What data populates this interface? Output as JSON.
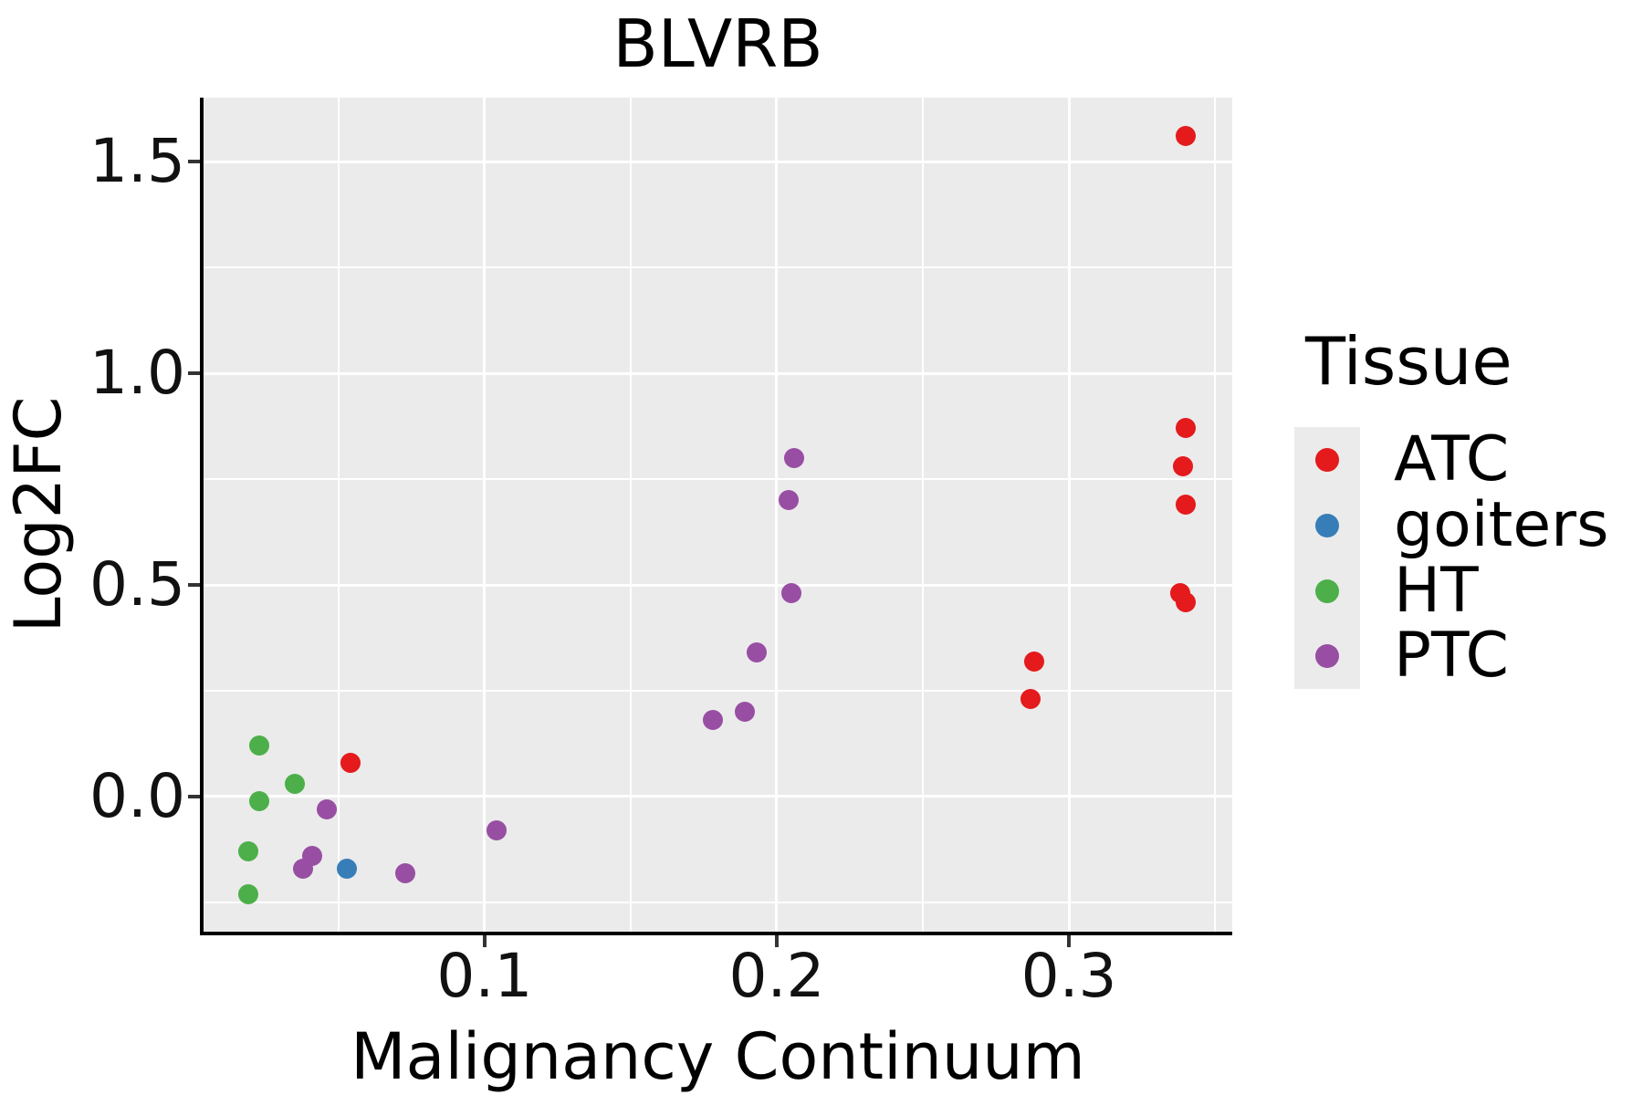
{
  "title": "BLVRB",
  "legend": {
    "title": "Tissue",
    "items": [
      {
        "label": "ATC",
        "color": "#E41A1C"
      },
      {
        "label": "goiters",
        "color": "#377EB8"
      },
      {
        "label": "HT",
        "color": "#4DAF4A"
      },
      {
        "label": "PTC",
        "color": "#984EA3"
      }
    ]
  },
  "colors": {
    "panel_background": "#EBEBEB",
    "gridline": "#FFFFFF",
    "axis_line": "#000000",
    "tick_mark": "#333333",
    "text": "#111111"
  },
  "tick_labels": {
    "x": [
      "0.1",
      "0.2",
      "0.3"
    ],
    "y": [
      "0.0",
      "0.5",
      "1.0",
      "1.5"
    ]
  },
  "chart_data": {
    "type": "scatter",
    "title": "BLVRB",
    "xlabel": "Malignancy Continuum",
    "ylabel": "Log2FC",
    "xlim": [
      0.0038,
      0.3559
    ],
    "ylim": [
      -0.319,
      1.651
    ],
    "x_ticks": [
      0.1,
      0.2,
      0.3
    ],
    "y_ticks": [
      0.0,
      0.5,
      1.0,
      1.5
    ],
    "x_minor_ticks": [
      0.05,
      0.15,
      0.25,
      0.35
    ],
    "y_minor_ticks": [
      -0.25,
      0.25,
      0.75,
      1.25
    ],
    "grid": true,
    "legend_position": "right",
    "legend_title": "Tissue",
    "series": [
      {
        "name": "ATC",
        "color": "#E41A1C",
        "points": [
          [
            0.34,
            1.56
          ],
          [
            0.34,
            0.87
          ],
          [
            0.339,
            0.78
          ],
          [
            0.34,
            0.69
          ],
          [
            0.338,
            0.48
          ],
          [
            0.34,
            0.46
          ],
          [
            0.288,
            0.32
          ],
          [
            0.287,
            0.23
          ],
          [
            0.054,
            0.08
          ]
        ]
      },
      {
        "name": "goiters",
        "color": "#377EB8",
        "points": [
          [
            0.053,
            -0.17
          ]
        ]
      },
      {
        "name": "HT",
        "color": "#4DAF4A",
        "points": [
          [
            0.023,
            0.12
          ],
          [
            0.035,
            0.03
          ],
          [
            0.023,
            -0.01
          ],
          [
            0.019,
            -0.13
          ],
          [
            0.019,
            -0.23
          ]
        ]
      },
      {
        "name": "PTC",
        "color": "#984EA3",
        "points": [
          [
            0.206,
            0.8
          ],
          [
            0.204,
            0.7
          ],
          [
            0.205,
            0.48
          ],
          [
            0.193,
            0.34
          ],
          [
            0.189,
            0.2
          ],
          [
            0.178,
            0.18
          ],
          [
            0.104,
            -0.08
          ],
          [
            0.046,
            -0.03
          ],
          [
            0.041,
            -0.14
          ],
          [
            0.038,
            -0.17
          ],
          [
            0.073,
            -0.18
          ]
        ]
      }
    ]
  }
}
